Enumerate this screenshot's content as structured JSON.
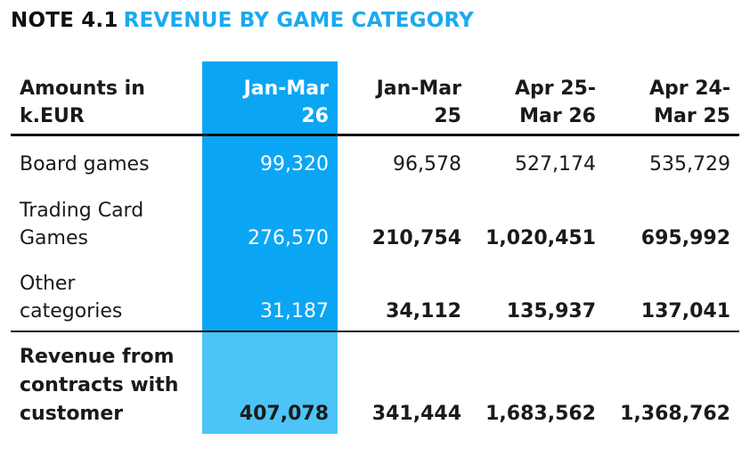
{
  "heading": {
    "note": "NOTE 4.1",
    "title": "REVENUE BY GAME CATEGORY"
  },
  "table": {
    "header": {
      "label_line1": "Amounts in",
      "label_line2": "k.EUR",
      "columns": [
        {
          "line1": "Jan-Mar",
          "line2": "26"
        },
        {
          "line1": "Jan-Mar",
          "line2": "25"
        },
        {
          "line1": "Apr 25-",
          "line2": "Mar 26"
        },
        {
          "line1": "Apr 24-",
          "line2": "Mar 25"
        }
      ]
    },
    "rows": [
      {
        "label_line1": "Board games",
        "label_line2": "",
        "values": [
          "99,320",
          "96,578",
          "527,174",
          "535,729"
        ]
      },
      {
        "label_line1": "Trading Card",
        "label_line2": "Games",
        "values": [
          "276,570",
          "210,754",
          "1,020,451",
          "695,992"
        ]
      },
      {
        "label_line1": "Other",
        "label_line2": "categories",
        "values": [
          "31,187",
          "34,112",
          "135,937",
          "137,041"
        ]
      }
    ],
    "total": {
      "label_line1": "Revenue from",
      "label_line2": "contracts with",
      "label_line3": "customer",
      "values": [
        "407,078",
        "341,444",
        "1,683,562",
        "1,368,762"
      ]
    }
  },
  "colors": {
    "accent": "#1aa9f0",
    "highlight_column": "#0aa6f4",
    "highlight_total": "#4cc4f8",
    "text": "#1a1a1a"
  }
}
